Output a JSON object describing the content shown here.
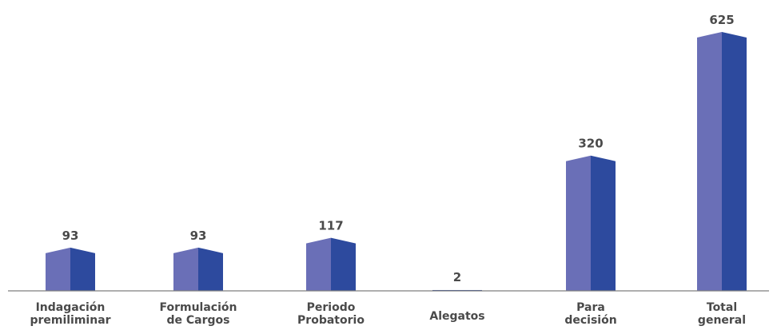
{
  "chart_data": {
    "type": "bar",
    "title": "",
    "xlabel": "",
    "ylabel": "",
    "categories": [
      [
        "Indagación",
        "premiliminar"
      ],
      [
        "Formulación",
        "de Cargos"
      ],
      [
        "Periodo",
        "Probatorio"
      ],
      [
        "Alegatos"
      ],
      [
        "Para",
        "decisión"
      ],
      [
        "Total",
        "general"
      ]
    ],
    "values": [
      93,
      93,
      117,
      2,
      320,
      625
    ],
    "ylim": [
      0,
      625
    ],
    "grid": false,
    "legend": "none",
    "colors": {
      "bar_left": "#6a6fb7",
      "bar_right": "#2d4a9e",
      "axis": "#7f7f7f",
      "text": "#4a4a4a"
    }
  }
}
